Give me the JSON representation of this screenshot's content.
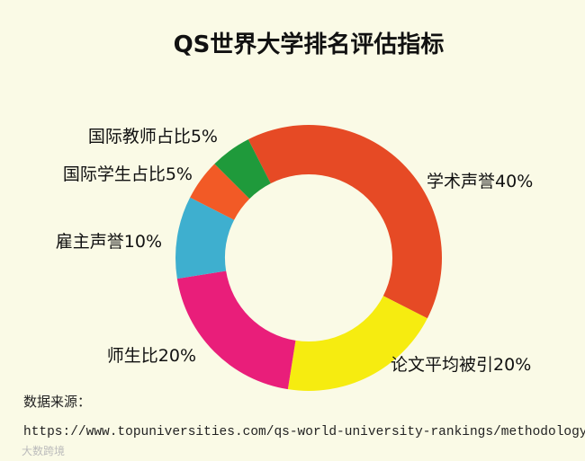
{
  "chart_data": {
    "type": "donut",
    "title": "QS世界大学排名评估指标",
    "categories": [
      "学术声誉",
      "论文平均被引",
      "师生比",
      "雇主声誉",
      "国际学生占比",
      "国际教师占比"
    ],
    "values": [
      40,
      20,
      20,
      10,
      5,
      5
    ],
    "value_labels": [
      "40%",
      "20%",
      "20%",
      "10%",
      "5%",
      "5%"
    ],
    "colors": [
      "#e64a25",
      "#f6ec10",
      "#e91e7a",
      "#3eafcf",
      "#f25a26",
      "#1f9a3b"
    ]
  },
  "source": {
    "label": "数据来源：",
    "url": "https://www.topuniversities.com/qs-world-university-rankings/methodology"
  },
  "watermark": "大数跨境"
}
